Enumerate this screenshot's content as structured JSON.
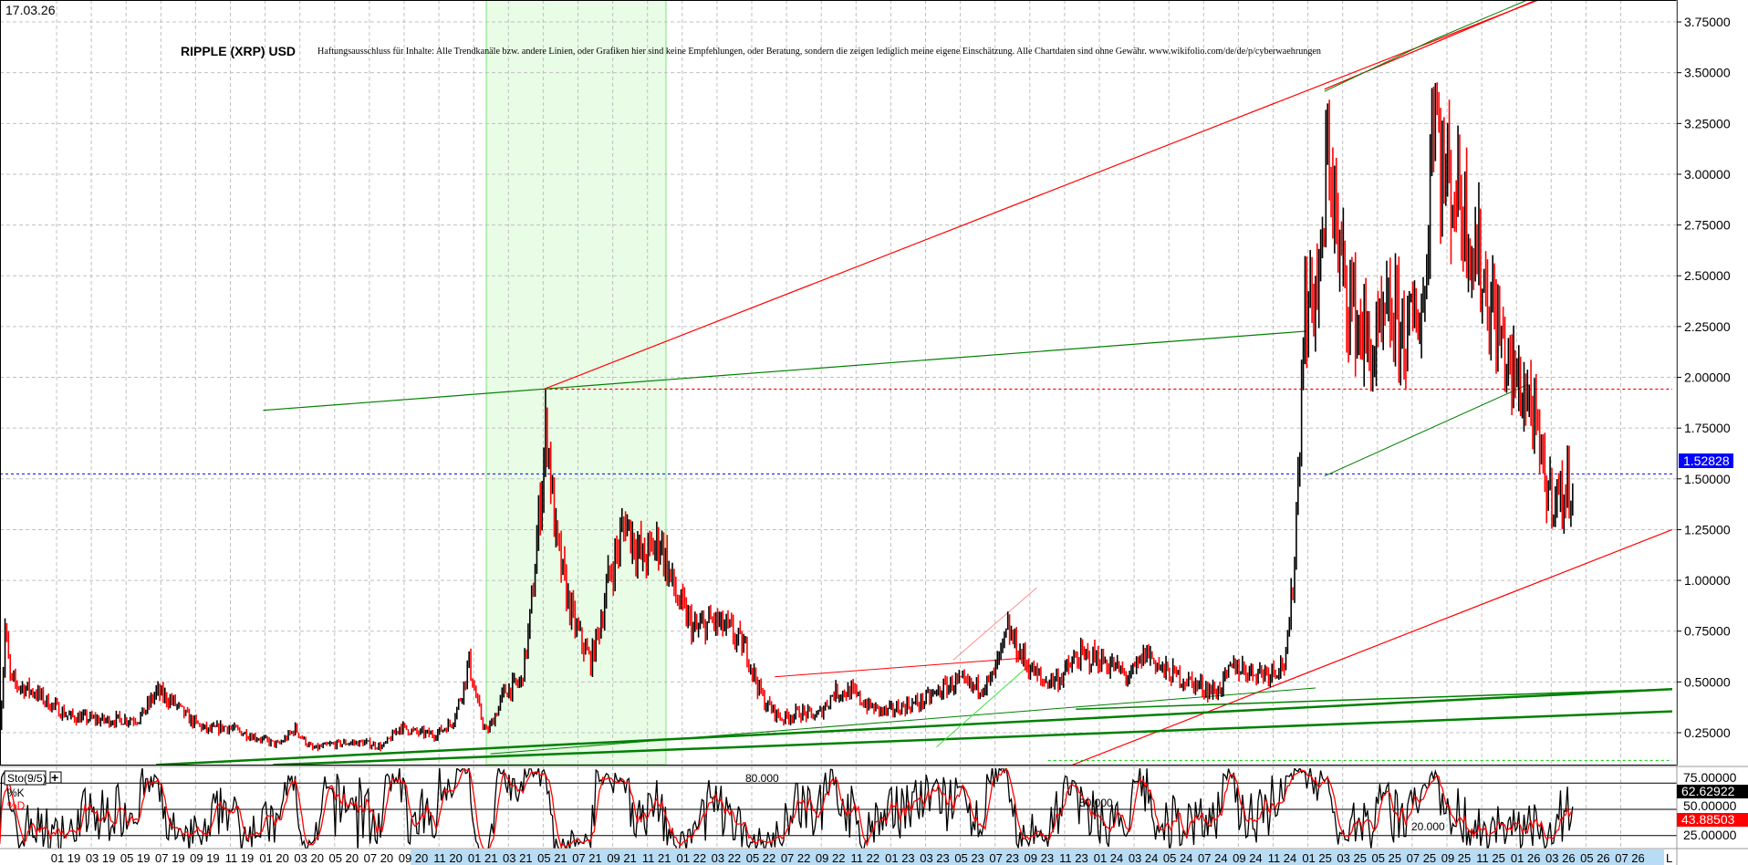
{
  "header": {
    "date": "17.03.26",
    "title": "RIPPLE (XRP) USD",
    "disclaimer": "Haftungsausschluss für Inhalte: Alle Trendkanäle bzw. andere Linien, oder Grafiken hier sind keine Empfehlungen, oder Beratung, sondern die zeigen lediglich meine eigene Einschätzung. Alle Chartdaten sind ohne Gewähr.  www.wikifolio.com/de/de/p/cyberwaehrungen"
  },
  "colors": {
    "up": "#000000",
    "down": "#ff0000",
    "highlight": "#e8fce6",
    "last_price": "#0000ff",
    "trend_green": "#008000",
    "trend_red": "#ff0000"
  },
  "chart_data": [
    {
      "type": "candlestick",
      "title": "RIPPLE (XRP) USD",
      "ylim": [
        0.0,
        3.85
      ],
      "y_ticks": [
        "3.75000",
        "3.50000",
        "3.25000",
        "3.00000",
        "2.75000",
        "2.50000",
        "2.25000",
        "2.00000",
        "1.75000",
        "1.50000",
        "1.25000",
        "1.00000",
        "0.75000",
        "0.50000",
        "0.25000"
      ],
      "x_ticks": [
        "01 19",
        "03 19",
        "05 19",
        "07 19",
        "09 19",
        "11 19",
        "01 20",
        "03 20",
        "05 20",
        "07 20",
        "09 20",
        "11 20",
        "01 21",
        "03 21",
        "05 21",
        "07 21",
        "09 21",
        "11 21",
        "01 22",
        "03 22",
        "05 22",
        "07 22",
        "09 22",
        "11 22",
        "01 23",
        "03 23",
        "05 23",
        "07 23",
        "09 23",
        "11 23",
        "01 24",
        "03 24",
        "05 24",
        "07 24",
        "09 24",
        "11 24",
        "01 25",
        "03 25",
        "05 25",
        "07 25",
        "09 25",
        "11 25",
        "01 26",
        "03 26",
        "05 26",
        "07 26"
      ],
      "last_price": "1.52828",
      "reference_levels": [
        1.94,
        1.52828,
        0.1
      ],
      "grid": true,
      "series": [
        {
          "points": [
            [
              "2018-09-01",
              0.3
            ],
            [
              "2018-09-10",
              0.77
            ],
            [
              "2018-09-20",
              0.5
            ],
            [
              "2018-11-01",
              0.45
            ],
            [
              "2019-01-01",
              0.33
            ],
            [
              "2019-03-01",
              0.31
            ],
            [
              "2019-05-01",
              0.32
            ],
            [
              "2019-06-01",
              0.45
            ],
            [
              "2019-07-01",
              0.4
            ],
            [
              "2019-08-01",
              0.31
            ],
            [
              "2019-09-01",
              0.26
            ],
            [
              "2019-10-01",
              0.28
            ],
            [
              "2019-11-01",
              0.25
            ],
            [
              "2019-12-01",
              0.22
            ],
            [
              "2020-01-01",
              0.19
            ],
            [
              "2020-02-01",
              0.27
            ],
            [
              "2020-03-01",
              0.17
            ],
            [
              "2020-04-01",
              0.19
            ],
            [
              "2020-05-01",
              0.2
            ],
            [
              "2020-06-01",
              0.2
            ],
            [
              "2020-07-01",
              0.18
            ],
            [
              "2020-08-01",
              0.28
            ],
            [
              "2020-09-01",
              0.25
            ],
            [
              "2020-10-01",
              0.24
            ],
            [
              "2020-11-01",
              0.3
            ],
            [
              "2020-12-01",
              0.6
            ],
            [
              "2021-01-01",
              0.25
            ],
            [
              "2021-02-01",
              0.45
            ],
            [
              "2021-03-01",
              0.5
            ],
            [
              "2021-04-01",
              1.3
            ],
            [
              "2021-04-15",
              1.8
            ],
            [
              "2021-05-01",
              1.2
            ],
            [
              "2021-06-01",
              0.8
            ],
            [
              "2021-07-01",
              0.6
            ],
            [
              "2021-08-01",
              1.0
            ],
            [
              "2021-09-01",
              1.3
            ],
            [
              "2021-10-01",
              1.1
            ],
            [
              "2021-11-01",
              1.2
            ],
            [
              "2021-12-01",
              0.9
            ],
            [
              "2022-01-01",
              0.75
            ],
            [
              "2022-02-01",
              0.8
            ],
            [
              "2022-03-01",
              0.75
            ],
            [
              "2022-04-01",
              0.65
            ],
            [
              "2022-05-01",
              0.4
            ],
            [
              "2022-06-01",
              0.32
            ],
            [
              "2022-07-01",
              0.35
            ],
            [
              "2022-08-01",
              0.33
            ],
            [
              "2022-09-01",
              0.45
            ],
            [
              "2022-10-01",
              0.45
            ],
            [
              "2022-11-01",
              0.38
            ],
            [
              "2022-12-01",
              0.35
            ],
            [
              "2023-01-01",
              0.38
            ],
            [
              "2023-02-01",
              0.4
            ],
            [
              "2023-03-01",
              0.45
            ],
            [
              "2023-04-01",
              0.5
            ],
            [
              "2023-05-01",
              0.47
            ],
            [
              "2023-06-01",
              0.5
            ],
            [
              "2023-07-01",
              0.75
            ],
            [
              "2023-08-01",
              0.6
            ],
            [
              "2023-09-01",
              0.5
            ],
            [
              "2023-10-01",
              0.52
            ],
            [
              "2023-11-01",
              0.62
            ],
            [
              "2023-12-01",
              0.62
            ],
            [
              "2024-01-01",
              0.58
            ],
            [
              "2024-02-01",
              0.52
            ],
            [
              "2024-03-01",
              0.65
            ],
            [
              "2024-04-01",
              0.55
            ],
            [
              "2024-05-01",
              0.52
            ],
            [
              "2024-06-01",
              0.48
            ],
            [
              "2024-07-01",
              0.45
            ],
            [
              "2024-08-01",
              0.58
            ],
            [
              "2024-09-01",
              0.55
            ],
            [
              "2024-10-01",
              0.55
            ],
            [
              "2024-11-01",
              0.6
            ],
            [
              "2024-11-15",
              1.1
            ],
            [
              "2024-12-01",
              2.3
            ],
            [
              "2025-01-01",
              2.5
            ],
            [
              "2025-01-15",
              3.2
            ],
            [
              "2025-02-01",
              2.6
            ],
            [
              "2025-03-01",
              2.3
            ],
            [
              "2025-04-01",
              2.1
            ],
            [
              "2025-05-01",
              2.3
            ],
            [
              "2025-06-01",
              2.2
            ],
            [
              "2025-07-01",
              2.4
            ],
            [
              "2025-07-15",
              3.5
            ],
            [
              "2025-08-01",
              3.0
            ],
            [
              "2025-09-01",
              2.9
            ],
            [
              "2025-10-01",
              2.6
            ],
            [
              "2025-11-01",
              2.3
            ],
            [
              "2025-12-01",
              2.0
            ],
            [
              "2026-01-01",
              1.9
            ],
            [
              "2026-02-01",
              1.45
            ],
            [
              "2026-03-01",
              1.4
            ],
            [
              "2026-03-17",
              1.53
            ]
          ]
        }
      ]
    },
    {
      "type": "line",
      "title": "Sto(9/5)",
      "series": [
        {
          "name": "%K",
          "color": "#000000",
          "last": "62.62922"
        },
        {
          "name": "%D",
          "color": "#ff0000",
          "last": "43.88503"
        }
      ],
      "y_ticks": [
        "75.00000",
        "50.00000",
        "25.00000"
      ],
      "levels": [
        "80.000",
        "50.000",
        "20.000"
      ],
      "ylim": [
        0,
        100
      ]
    }
  ],
  "footer": {
    "scale_mode": "L"
  }
}
